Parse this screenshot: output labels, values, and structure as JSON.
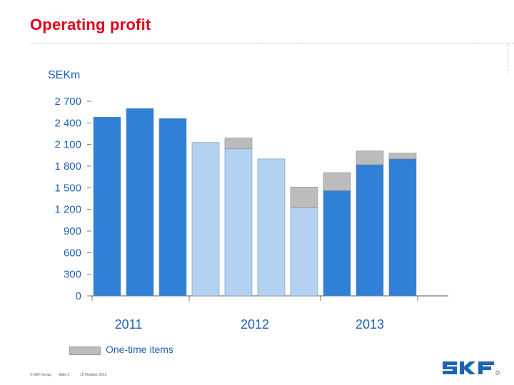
{
  "slide": {
    "title": "Operating profit",
    "footer_left": "© SKF Group",
    "footer_slide": "Slide 2",
    "footer_date": "15 October 2013"
  },
  "colors": {
    "title": "#e2001a",
    "bar_dark": "#2f80d6",
    "bar_light": "#b3d1f0",
    "one_time": "#bcbcbc",
    "axis_text": "#1f63b5",
    "logo": "#1f63b5"
  },
  "chart_data": {
    "type": "bar",
    "stacked": true,
    "ylabel": "SEKm",
    "ylim": [
      0,
      2700
    ],
    "yticks": [
      {
        "value": 0,
        "label": "0"
      },
      {
        "value": 300,
        "label": "300"
      },
      {
        "value": 600,
        "label": "600"
      },
      {
        "value": 900,
        "label": "900"
      },
      {
        "value": 1200,
        "label": "1 200"
      },
      {
        "value": 1500,
        "label": "1 500"
      },
      {
        "value": 1800,
        "label": "1 800"
      },
      {
        "value": 2100,
        "label": "2 100"
      },
      {
        "value": 2400,
        "label": "2 400"
      },
      {
        "value": 2700,
        "label": "2 700"
      }
    ],
    "year_groups": [
      {
        "label": "2011",
        "shade": "dark",
        "bars": [
          {
            "base": 2480,
            "one_time": 0
          },
          {
            "base": 2600,
            "one_time": 0
          },
          {
            "base": 2460,
            "one_time": 0
          }
        ]
      },
      {
        "label": "2012",
        "shade": "light",
        "bars": [
          {
            "base": 2130,
            "one_time": 0
          },
          {
            "base": 2040,
            "one_time": 150
          },
          {
            "base": 1900,
            "one_time": 0
          },
          {
            "base": 1220,
            "one_time": 290
          }
        ]
      },
      {
        "label": "2013",
        "shade": "dark",
        "bars": [
          {
            "base": 1460,
            "one_time": 250
          },
          {
            "base": 1820,
            "one_time": 190
          },
          {
            "base": 1900,
            "one_time": 80
          }
        ]
      }
    ],
    "legend": [
      {
        "label": "One-time items",
        "color": "#bcbcbc"
      }
    ],
    "legend_position": "bottom-left",
    "grid": false
  }
}
